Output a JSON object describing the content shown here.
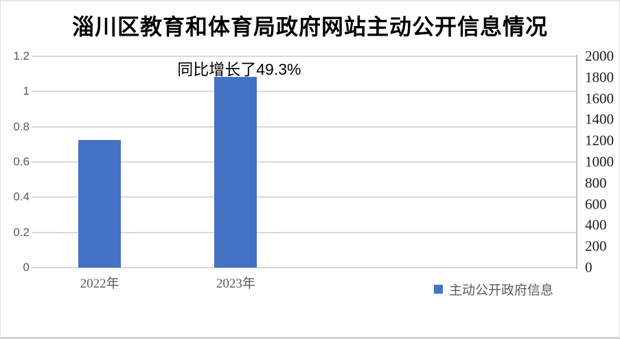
{
  "chart_data": {
    "type": "bar",
    "title": "淄川区教育和体育局政府网站主动公开信息情况",
    "categories": [
      "2022年",
      "2023年"
    ],
    "series": [
      {
        "name": "主动公开政府信息",
        "axis": "right",
        "values": [
          1208,
          1804
        ],
        "values_left_axis_equivalent": [
          0.72,
          1.08
        ]
      }
    ],
    "annotation": "同比增长了49.3%",
    "legend": {
      "label": "主动公开政府信息",
      "swatch_color": "#4472C4",
      "position": "bottom-right"
    },
    "bar_color": "#4472C4",
    "gridline_color": "#D9D9D9",
    "grid": true,
    "left_axis": {
      "range": [
        0,
        1.2
      ],
      "tick_values": [
        0,
        0.2,
        0.4,
        0.6,
        0.8,
        1,
        1.2
      ],
      "tick_labels": [
        "0",
        "0.2",
        "0.4",
        "0.6",
        "0.8",
        "1",
        "1.2"
      ]
    },
    "right_axis": {
      "range": [
        0,
        2000
      ],
      "tick_values": [
        0,
        200,
        400,
        600,
        800,
        1000,
        1200,
        1400,
        1600,
        1800,
        2000
      ],
      "tick_labels": [
        "0",
        "200",
        "400",
        "600",
        "800",
        "1000",
        "1200",
        "1400",
        "1600",
        "1800",
        "2000"
      ]
    }
  }
}
